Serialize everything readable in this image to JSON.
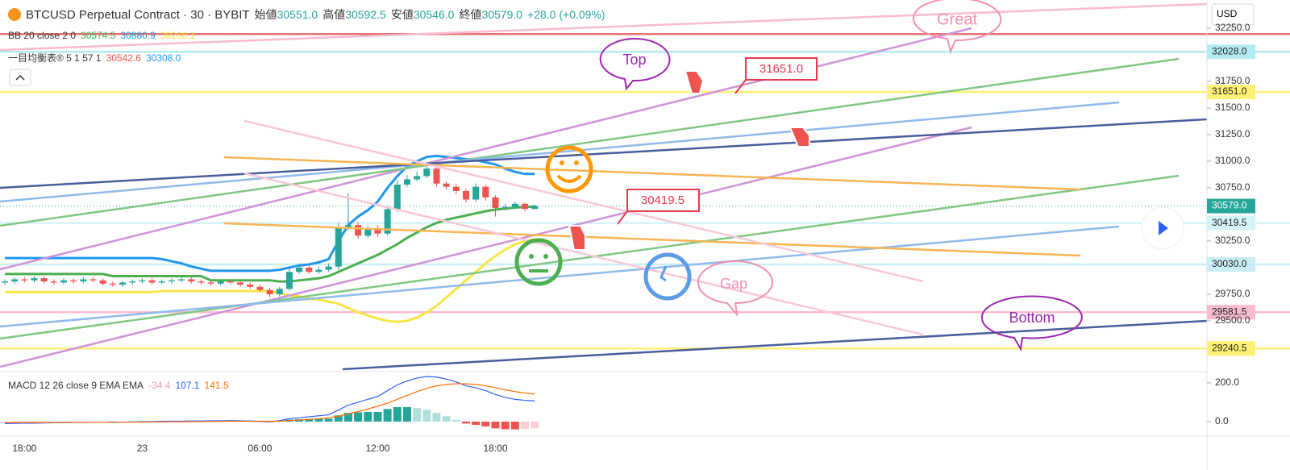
{
  "header": {
    "symbol": "BTCUSD Perpetual Contract · 30 · BYBIT",
    "ohlc": [
      {
        "label": "始値",
        "value": "30551.0"
      },
      {
        "label": "高値",
        "value": "30592.5"
      },
      {
        "label": "安値",
        "value": "30546.0"
      },
      {
        "label": "終値",
        "value": "30579.0"
      }
    ],
    "change": "+28.0 (+0.09%)"
  },
  "currency": "USD",
  "chart_data": [
    {
      "type": "candlestick",
      "categories": [
        null,
        null,
        "18:00",
        null,
        null,
        null,
        null,
        null,
        null,
        null,
        null,
        null,
        null,
        null,
        "23",
        null,
        null,
        null,
        null,
        null,
        null,
        null,
        null,
        null,
        null,
        null,
        "06:00",
        null,
        null,
        null,
        null,
        null,
        null,
        null,
        null,
        null,
        null,
        null,
        "12:00",
        null,
        null,
        null,
        null,
        null,
        null,
        null,
        null,
        null,
        null,
        null,
        "18:00",
        null,
        null,
        null,
        null
      ],
      "open": [
        29860,
        29870,
        29890,
        29880,
        29900,
        29870,
        29860,
        29880,
        29870,
        29890,
        29880,
        29850,
        29840,
        29860,
        29870,
        29880,
        29860,
        29870,
        29880,
        29890,
        29870,
        29860,
        29850,
        29870,
        29860,
        29840,
        29820,
        29790,
        29750,
        29800,
        29960,
        30000,
        29960,
        29980,
        30010,
        30380,
        30400,
        30300,
        30360,
        30320,
        30550,
        30780,
        30830,
        30860,
        30930,
        30790,
        30760,
        30720,
        30640,
        30760,
        30660,
        30560,
        30570,
        30600,
        30551
      ],
      "high": [
        29890,
        29910,
        29910,
        29920,
        29920,
        29890,
        29900,
        29900,
        29910,
        29910,
        29900,
        29870,
        29880,
        29890,
        29900,
        29900,
        29890,
        29900,
        29910,
        29910,
        29890,
        29880,
        29890,
        29890,
        29880,
        29860,
        29840,
        29810,
        29820,
        29990,
        30040,
        30020,
        30010,
        30040,
        30420,
        30700,
        30430,
        30390,
        30400,
        30580,
        30820,
        30870,
        30900,
        30950,
        30960,
        30810,
        30790,
        30740,
        30790,
        30780,
        30680,
        30600,
        30620,
        30610,
        30592.5
      ],
      "low": [
        29840,
        29850,
        29860,
        29860,
        29850,
        29840,
        29840,
        29850,
        29850,
        29860,
        29830,
        29820,
        29820,
        29840,
        29850,
        29840,
        29840,
        29850,
        29860,
        29850,
        29840,
        29830,
        29830,
        29840,
        29820,
        29800,
        29770,
        29720,
        29730,
        29780,
        29940,
        29940,
        29940,
        29960,
        29980,
        30350,
        30270,
        30280,
        30290,
        30300,
        30520,
        30760,
        30810,
        30840,
        30760,
        30730,
        30690,
        30610,
        30620,
        30630,
        30480,
        30540,
        30550,
        30530,
        30546
      ],
      "close": [
        29870,
        29890,
        29880,
        29900,
        29870,
        29860,
        29880,
        29870,
        29890,
        29880,
        29850,
        29840,
        29860,
        29870,
        29880,
        29860,
        29870,
        29880,
        29890,
        29870,
        29860,
        29850,
        29870,
        29860,
        29840,
        29820,
        29790,
        29750,
        29800,
        29960,
        30000,
        29960,
        29980,
        30010,
        30380,
        30400,
        30300,
        30360,
        30320,
        30550,
        30780,
        30830,
        30860,
        30930,
        30790,
        30760,
        30720,
        30640,
        30760,
        30660,
        30560,
        30570,
        30600,
        30551,
        30579
      ],
      "colors": {
        "up": "#26a69a",
        "down": "#ef5350"
      },
      "ylim": [
        29030,
        32515
      ],
      "yticks": [
        {
          "value": 32250,
          "label": "32250.0"
        },
        {
          "value": 31750,
          "label": "31750.0"
        },
        {
          "value": 31500,
          "label": "31500.0"
        },
        {
          "value": 31250,
          "label": "31250.0"
        },
        {
          "value": 31000,
          "label": "31000.0"
        },
        {
          "value": 30750,
          "label": "30750.0"
        },
        {
          "value": 30250,
          "label": "30250.0"
        },
        {
          "value": 29750,
          "label": "29750.0"
        },
        {
          "value": 29500,
          "label": "29500.0"
        }
      ],
      "bands": {
        "name": "BB 20 close 2 0",
        "series": [
          {
            "color": "#4caf50",
            "values": [
              29940,
              29940,
              29940,
              29940,
              29940,
              29940,
              29940,
              29940,
              29940,
              29940,
              29940,
              29920,
              29920,
              29920,
              29920,
              29920,
              29920,
              29920,
              29920,
              29920,
              29920,
              29880,
              29880,
              29880,
              29880,
              29880,
              29880,
              29880,
              29870,
              29870,
              29880,
              29890,
              29900,
              29920,
              29960,
              30000,
              30040,
              30080,
              30120,
              30170,
              30220,
              30280,
              30330,
              30380,
              30420,
              30450,
              30470,
              30490,
              30510,
              30530,
              30545,
              30555,
              30565,
              30570,
              30574.5
            ]
          },
          {
            "color": "#2196f3",
            "values": [
              30090,
              30090,
              30090,
              30090,
              30090,
              30090,
              30090,
              30090,
              30090,
              30090,
              30090,
              30090,
              30090,
              30090,
              30090,
              30090,
              30080,
              30060,
              30040,
              30010,
              29990,
              29970,
              29970,
              29970,
              29970,
              29970,
              29970,
              29970,
              29980,
              30000,
              30020,
              30030,
              30050,
              30080,
              30250,
              30400,
              30480,
              30540,
              30620,
              30750,
              30860,
              30950,
              31000,
              31040,
              31050,
              31040,
              31030,
              31020,
              31010,
              30990,
              30970,
              30930,
              30900,
              30880,
              30880.9
            ]
          },
          {
            "color": "#f9e547",
            "values": [
              29770,
              29770,
              29770,
              29770,
              29770,
              29770,
              29770,
              29770,
              29770,
              29770,
              29770,
              29770,
              29770,
              29770,
              29770,
              29770,
              29780,
              29780,
              29780,
              29780,
              29780,
              29780,
              29780,
              29780,
              29780,
              29780,
              29780,
              29780,
              29760,
              29740,
              29730,
              29710,
              29700,
              29680,
              29660,
              29620,
              29580,
              29550,
              29520,
              29500,
              29490,
              29500,
              29530,
              29580,
              29640,
              29720,
              29800,
              29880,
              29960,
              30040,
              30110,
              30170,
              30220,
              30250,
              30268.1
            ]
          }
        ]
      },
      "ichimoku": {
        "name": "一目均衡表® 5 1 57 1",
        "values": [
          {
            "text": "30542.6",
            "color": "#ef5350"
          },
          {
            "text": "30308.0",
            "color": "#2196f3"
          }
        ]
      },
      "hlines": [
        {
          "value": 32195,
          "color": "#e57373"
        },
        {
          "value": 32028,
          "label": "32028.0",
          "color": "#b2ebf2"
        },
        {
          "value": 31651,
          "label": "31651.0",
          "color": "#fff176"
        },
        {
          "value": 30419.5,
          "label": "30419.5",
          "color": "#d4f3f7"
        },
        {
          "value": 30030,
          "label": "30030.0",
          "color": "#c9eff4"
        },
        {
          "value": 29581.5,
          "label": "29581.5",
          "color": "#f8bbd0"
        },
        {
          "value": 29240.5,
          "label": "29240.5",
          "color": "#fff176"
        }
      ],
      "last_price": {
        "value": 30579,
        "label": "30579.0",
        "color": "#26a69a"
      },
      "annotations": [
        {
          "text": "Great",
          "color": "#f48fb1"
        },
        {
          "text": "Top",
          "color": "#9c27b0"
        },
        {
          "text": "31651.0",
          "color": "#e53950"
        },
        {
          "text": "30419.5",
          "color": "#e53950"
        },
        {
          "text": "Gap",
          "color": "#f48fb1"
        },
        {
          "text": "Bottom",
          "color": "#9c27b0"
        }
      ]
    },
    {
      "type": "macd",
      "title": "MACD 12 26 close 9 EMA EMA",
      "histogram": [
        -5,
        -4,
        -3,
        -3,
        -2,
        -1,
        -1,
        -1,
        -1,
        0,
        0,
        1,
        0,
        1,
        2,
        2,
        3,
        3,
        3,
        3,
        3,
        3,
        3,
        3,
        2,
        1,
        -1,
        -3,
        3,
        10,
        12,
        13,
        15,
        15,
        32,
        45,
        48,
        50,
        50,
        65,
        75,
        75,
        70,
        61,
        45,
        28,
        9,
        -10,
        -17,
        -25,
        -35,
        -39,
        -40,
        -38,
        -34.4
      ],
      "histogram_colors": [
        "#26a69a",
        "#b2dfdb",
        "#ffcdd2",
        "#ef5350"
      ],
      "series": [
        {
          "color": "#2962ff",
          "values": [
            -10,
            -9,
            -8,
            -8,
            -7,
            -6,
            -6,
            -5,
            -5,
            -4,
            -4,
            -3,
            -3,
            -2,
            -1,
            0,
            1,
            2,
            2,
            3,
            3,
            4,
            4,
            5,
            4,
            3,
            1,
            -1,
            5,
            15,
            20,
            25,
            30,
            35,
            60,
            85,
            100,
            115,
            130,
            160,
            190,
            210,
            225,
            233,
            230,
            220,
            205,
            185,
            175,
            160,
            140,
            125,
            115,
            110,
            107.1
          ]
        },
        {
          "color": "#ff6d00",
          "values": [
            -5,
            -5,
            -5,
            -5,
            -5,
            -5,
            -5,
            -4,
            -4,
            -4,
            -4,
            -4,
            -3,
            -3,
            -3,
            -2,
            -2,
            -1,
            -1,
            0,
            0,
            1,
            1,
            2,
            2,
            2,
            2,
            2,
            2,
            5,
            8,
            12,
            15,
            20,
            28,
            40,
            52,
            65,
            80,
            95,
            115,
            135,
            155,
            172,
            185,
            192,
            196,
            195,
            192,
            185,
            175,
            164,
            155,
            148,
            141.5
          ]
        }
      ],
      "ylim": [
        -71,
        254
      ],
      "yticks": [
        {
          "value": 200,
          "label": "200.0"
        },
        {
          "value": 0,
          "label": "0.0"
        }
      ]
    }
  ]
}
